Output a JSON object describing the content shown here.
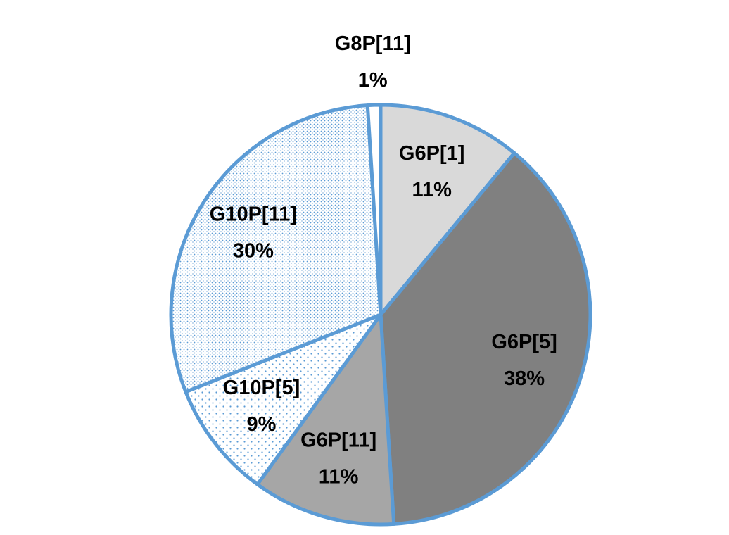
{
  "chart_data": {
    "type": "pie",
    "categories": [
      "G6P[1]",
      "G6P[5]",
      "G6P[11]",
      "G10P[5]",
      "G10P[11]",
      "G8P[11]"
    ],
    "values": [
      11,
      38,
      11,
      9,
      30,
      1
    ],
    "value_labels": [
      "11%",
      "38%",
      "11%",
      "9%",
      "30%",
      "1%"
    ],
    "colors": [
      "#d9d9d9",
      "#808080",
      "#a6a6a6",
      "url(#dots-sparse)",
      "url(#dots-dense)",
      "#ffffff"
    ],
    "edge_color": "#5b9bd5"
  }
}
